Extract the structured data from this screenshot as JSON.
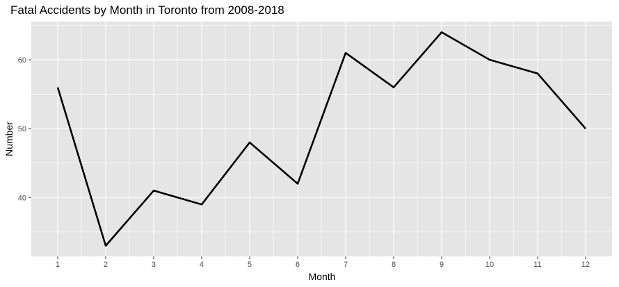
{
  "chart_data": {
    "type": "line",
    "title": "Fatal Accidents by Month in Toronto from 2008-2018",
    "xlabel": "Month",
    "ylabel": "Number",
    "x": [
      1,
      2,
      3,
      4,
      5,
      6,
      7,
      8,
      9,
      10,
      11,
      12
    ],
    "x_tick_labels": [
      "1",
      "2",
      "3",
      "4",
      "5",
      "6",
      "7",
      "8",
      "9",
      "10",
      "11",
      "12"
    ],
    "y_tick_labels": [
      "40",
      "50",
      "60"
    ],
    "y_ticks": [
      40,
      50,
      60
    ],
    "series": [
      {
        "values": [
          56,
          33,
          41,
          39,
          48,
          42,
          61,
          56,
          64,
          60,
          58,
          50
        ]
      }
    ],
    "xlim": [
      0.45,
      12.55
    ],
    "ylim": [
      31.45,
      65.55
    ],
    "grid": true,
    "legend": "none",
    "colors": {
      "panel": "#e5e5e5",
      "grid": "#ffffff",
      "line": "#000000",
      "tick": "#4d4d4d"
    }
  }
}
